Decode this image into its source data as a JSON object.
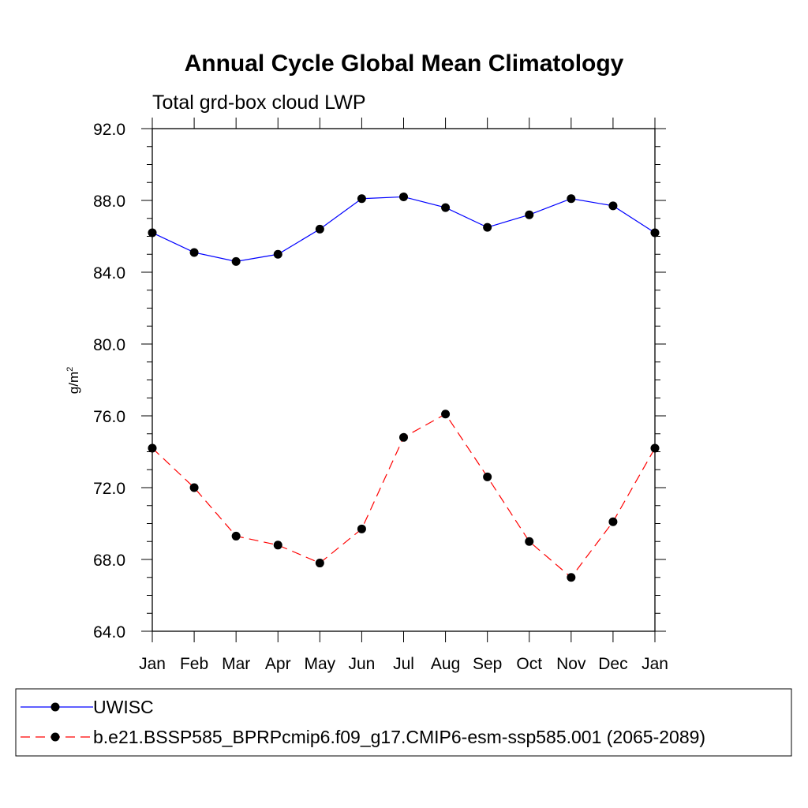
{
  "chart_data": {
    "type": "line",
    "title": "Annual Cycle Global Mean Climatology",
    "subtitle": "Total grd-box cloud LWP",
    "ylabel_base": "g/m",
    "ylabel_sup": "2",
    "xlabel": "",
    "categories": [
      "Jan",
      "Feb",
      "Mar",
      "Apr",
      "May",
      "Jun",
      "Jul",
      "Aug",
      "Sep",
      "Oct",
      "Nov",
      "Dec",
      "Jan"
    ],
    "ylim": [
      64.0,
      92.0
    ],
    "yticks": [
      64.0,
      68.0,
      72.0,
      76.0,
      80.0,
      84.0,
      88.0,
      92.0
    ],
    "ytick_labels": [
      "64.0",
      "68.0",
      "72.0",
      "76.0",
      "80.0",
      "84.0",
      "88.0",
      "92.0"
    ],
    "grid": false,
    "legend_position": "bottom",
    "series": [
      {
        "name": "UWISC",
        "color": "#0000ff",
        "dash": "solid",
        "values": [
          86.2,
          85.1,
          84.6,
          85.0,
          86.4,
          88.1,
          88.2,
          87.6,
          86.5,
          87.2,
          88.1,
          87.7,
          86.2
        ]
      },
      {
        "name": "b.e21.BSSP585_BPRPcmip6.f09_g17.CMIP6-esm-ssp585.001 (2065-2089)",
        "color": "#ff0000",
        "dash": "dashed",
        "values": [
          74.2,
          72.0,
          69.3,
          68.8,
          67.8,
          69.7,
          74.8,
          76.1,
          72.6,
          69.0,
          67.0,
          70.1,
          74.2
        ]
      }
    ]
  }
}
